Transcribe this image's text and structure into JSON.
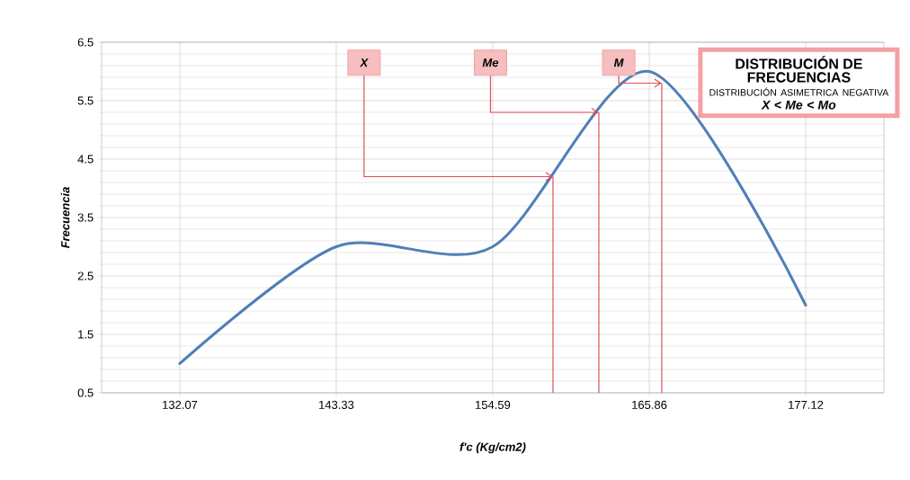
{
  "chart_data": {
    "type": "line",
    "xlabel": "f'c    (Kg/cm2)",
    "ylabel": "Frecuencia",
    "x": [
      132.07,
      143.33,
      154.59,
      165.86,
      177.12
    ],
    "values": [
      1,
      3,
      3,
      6,
      2
    ],
    "color": "#4f7fb8",
    "xlim": [
      126.44,
      182.75
    ],
    "xticks": [
      132.07,
      143.33,
      154.59,
      165.86,
      177.12
    ],
    "ylim": [
      0.5,
      6.5
    ],
    "yticks": [
      0.5,
      1.5,
      2.5,
      3.5,
      4.5,
      5.5,
      6.5
    ],
    "ref_lines": [
      {
        "axis": "x",
        "value": 158.93,
        "color": "#dc505a"
      },
      {
        "axis": "x",
        "value": 162.23,
        "color": "#dc505a"
      },
      {
        "axis": "x",
        "value": 166.76,
        "color": "#dc505a"
      }
    ],
    "grid": true,
    "marker": "none",
    "line_style": "solid",
    "annotations": [
      "DISTRIBUCIÓN DE FRECUENCIAS",
      "DISTRIBUCIÓN ASIMETRICA NEGATIVA",
      "X <  Me < Mo",
      {
        "text": "X",
        "x": 158.93,
        "y": 4.2
      },
      {
        "text": "Me",
        "x": 162.23,
        "y": 5.3
      },
      {
        "text": "M",
        "x": 166.76,
        "y": 5.8
      }
    ]
  }
}
